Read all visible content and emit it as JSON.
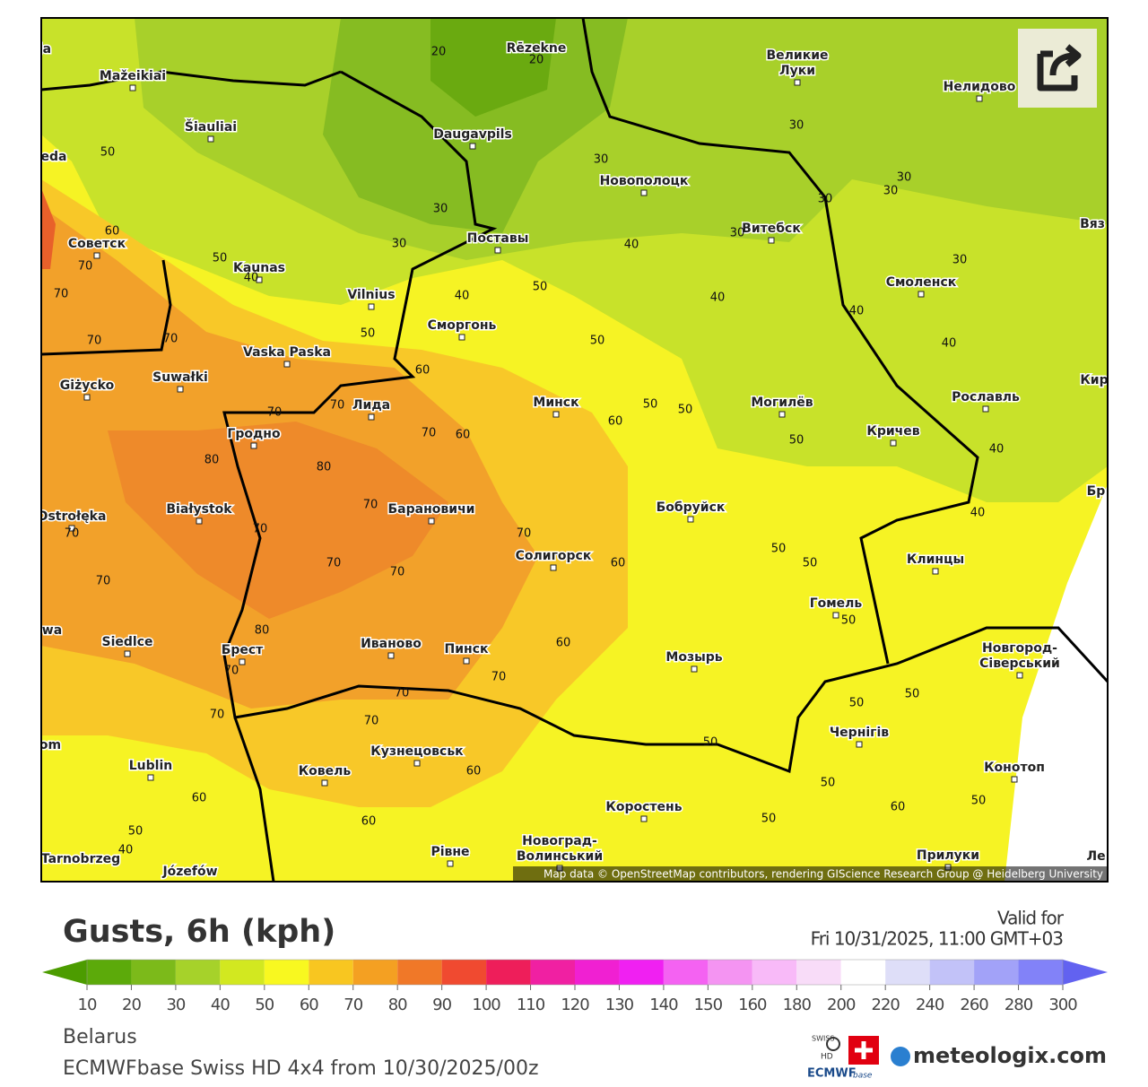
{
  "map": {
    "cities": [
      "Mažeikiai",
      "Šiauliai",
      "Daugavpils",
      "Rēzekne",
      "Великие",
      "Луки",
      "Нелидово",
      "Новополоцк",
      "Витебск",
      "Поставы",
      "Kaunas",
      "Vilnius",
      "Сморгонь",
      "Смоленск",
      "Советск",
      "Vaska Paska",
      "Suwałki",
      "Giżycko",
      "Лида",
      "Минск",
      "Могилёв",
      "Рославль",
      "Гродно",
      "Кричев",
      "Białystok",
      "Барановичи",
      "Бобруйск",
      "Ostrołęka",
      "Солигорск",
      "Клинцы",
      "Гомель",
      "Siedlce",
      "Брест",
      "Иваново",
      "Пинск",
      "Новгород-",
      "Сіверський",
      "Мозырь",
      "Чернігів",
      "Lublin",
      "Кузнецовськ",
      "Ковель",
      "Конотоп",
      "Коростень",
      "Новоград-",
      "Волинський",
      "Рівне",
      "Прилуки",
      "Tarnobrzeg",
      "Józefów",
      "ja",
      "eda",
      "Вяз",
      "Кир",
      "Бр",
      "wa",
      "om",
      "Ле"
    ],
    "contours": [
      20,
      20,
      50,
      60,
      30,
      30,
      30,
      30,
      30,
      30,
      30,
      30,
      40,
      30,
      50,
      40,
      70,
      70,
      40,
      50,
      40,
      40,
      70,
      70,
      50,
      50,
      40,
      60,
      70,
      70,
      50,
      50,
      60,
      70,
      60,
      50,
      80,
      80,
      40,
      70,
      40,
      70,
      70,
      70,
      50,
      70,
      70,
      50,
      60,
      70,
      80,
      50,
      60,
      70,
      70,
      50,
      70,
      50,
      70,
      70,
      50,
      60,
      50,
      60,
      60,
      50,
      60,
      50,
      50,
      40
    ],
    "attribution": "Map data © OpenStreetMap contributors, rendering GIScience Research Group @ Heidelberg University"
  },
  "title": "Gusts, 6h (kph)",
  "valid_for": "Valid for",
  "valid_time": "Fri 10/31/2025, 11:00 GMT+03",
  "legend": {
    "ticks": [
      10,
      20,
      30,
      40,
      50,
      60,
      70,
      80,
      90,
      100,
      110,
      120,
      130,
      140,
      150,
      160,
      180,
      200,
      220,
      240,
      260,
      280,
      300
    ],
    "colors": [
      "#4c9c00",
      "#5caa0a",
      "#7cba1a",
      "#a6d22a",
      "#d2e820",
      "#f8f820",
      "#f8c620",
      "#f4a022",
      "#f07828",
      "#f04a30",
      "#ee1e5a",
      "#f020a2",
      "#f020d2",
      "#f020f2",
      "#f462f2",
      "#f494f2",
      "#f8baf8",
      "#f8dcf8",
      "#ffffff",
      "#dedef8",
      "#c2c2f8",
      "#a2a2f8",
      "#8282f8",
      "#6262f0"
    ]
  },
  "region": "Belarus",
  "model_run": "ECMWFbase Swiss HD 4x4 from 10/30/2025/00z",
  "logo": "meteologix.com",
  "logo_badges": [
    "SWISS",
    "HD",
    "ECMWF",
    "base"
  ]
}
